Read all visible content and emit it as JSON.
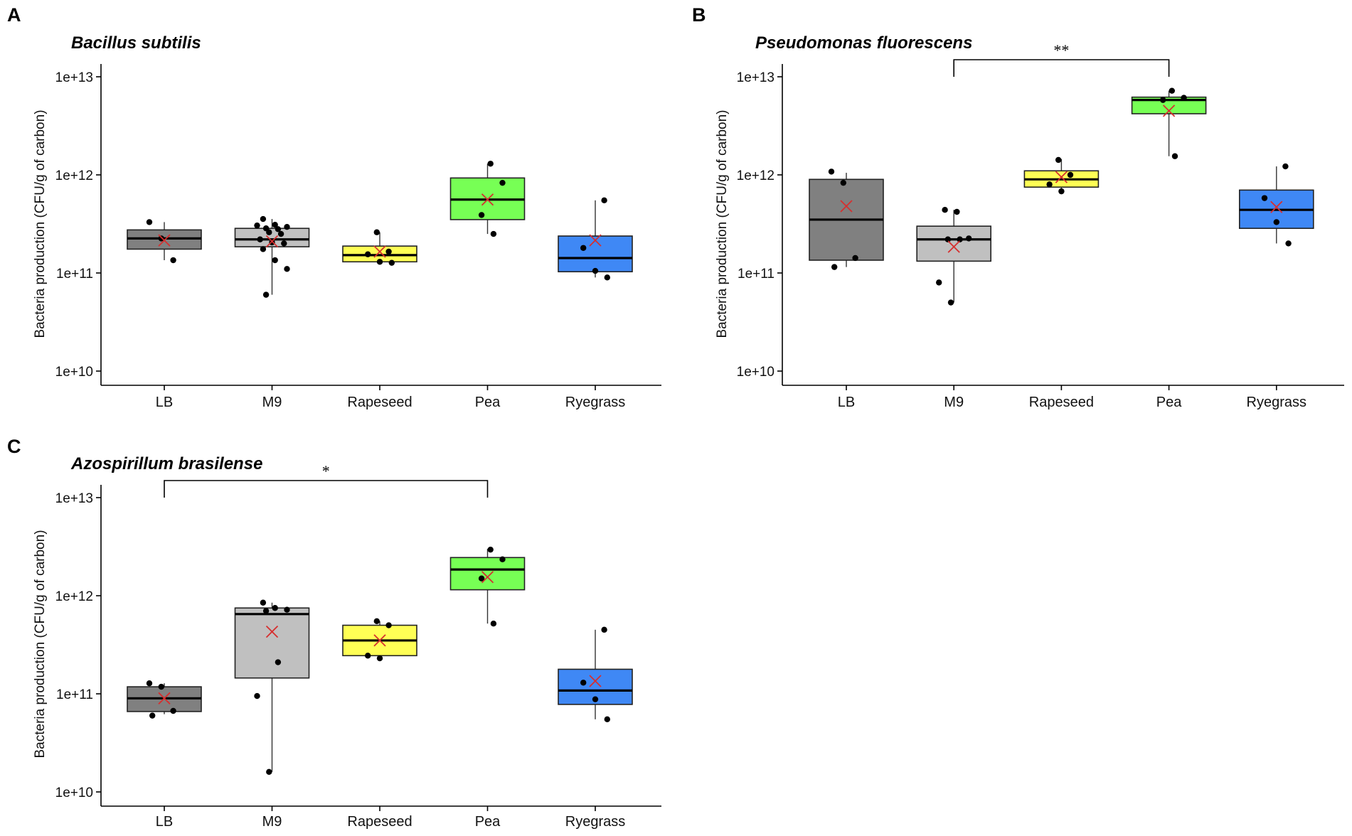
{
  "chart_data": [
    {
      "type": "box",
      "panel": "A",
      "title": "Bacillus subtilis",
      "ylabel": "Bacteria production (CFU/g of carbon)",
      "yscale": "log10",
      "ylim": [
        10000000000.0,
        10000000000000.0
      ],
      "yticks": [
        "1e+10",
        "1e+11",
        "1e+12",
        "1e+13"
      ],
      "categories": [
        "LB",
        "M9",
        "Rapeseed",
        "Pea",
        "Ryegrass"
      ],
      "boxes": [
        {
          "category": "LB",
          "color": "#808080",
          "q1": 175000000000.0,
          "median": 225000000000.0,
          "q3": 275000000000.0,
          "whisker_low": 135000000000.0,
          "whisker_high": 330000000000.0,
          "mean": 215000000000.0,
          "points": [
            330000000000.0,
            225000000000.0,
            135000000000.0
          ]
        },
        {
          "category": "M9",
          "color": "#c0c0c0",
          "q1": 185000000000.0,
          "median": 220000000000.0,
          "q3": 285000000000.0,
          "whisker_low": 60000000000.0,
          "whisker_high": 355000000000.0,
          "mean": 210000000000.0,
          "points": [
            355000000000.0,
            310000000000.0,
            295000000000.0,
            285000000000.0,
            280000000000.0,
            305000000000.0,
            260000000000.0,
            250000000000.0,
            220000000000.0,
            205000000000.0,
            200000000000.0,
            175000000000.0,
            135000000000.0,
            110000000000.0,
            60000000000.0
          ]
        },
        {
          "category": "Rapeseed",
          "color": "#ffff55",
          "q1": 130000000000.0,
          "median": 152000000000.0,
          "q3": 188000000000.0,
          "whisker_low": 127000000000.0,
          "whisker_high": 260000000000.0,
          "mean": 165000000000.0,
          "points": [
            260000000000.0,
            165000000000.0,
            155000000000.0,
            130000000000.0,
            127000000000.0
          ]
        },
        {
          "category": "Pea",
          "color": "#77ff55",
          "q1": 350000000000.0,
          "median": 560000000000.0,
          "q3": 930000000000.0,
          "whisker_low": 250000000000.0,
          "whisker_high": 1300000000000.0,
          "mean": 560000000000.0,
          "points": [
            1300000000000.0,
            830000000000.0,
            390000000000.0,
            250000000000.0
          ]
        },
        {
          "category": "Ryegrass",
          "color": "#3f88f5",
          "q1": 103000000000.0,
          "median": 142000000000.0,
          "q3": 238000000000.0,
          "whisker_low": 90000000000.0,
          "whisker_high": 550000000000.0,
          "mean": 215000000000.0,
          "points": [
            550000000000.0,
            180000000000.0,
            105000000000.0,
            90000000000.0
          ]
        }
      ],
      "significance": []
    },
    {
      "type": "box",
      "panel": "B",
      "title": "Pseudomonas fluorescens",
      "ylabel": "Bacteria production (CFU/g of carbon)",
      "yscale": "log10",
      "ylim": [
        10000000000.0,
        10000000000000.0
      ],
      "yticks": [
        "1e+10",
        "1e+11",
        "1e+12",
        "1e+13"
      ],
      "categories": [
        "LB",
        "M9",
        "Rapeseed",
        "Pea",
        "Ryegrass"
      ],
      "boxes": [
        {
          "category": "LB",
          "color": "#808080",
          "q1": 135000000000.0,
          "median": 350000000000.0,
          "q3": 900000000000.0,
          "whisker_low": 115000000000.0,
          "whisker_high": 1050000000000.0,
          "mean": 480000000000.0,
          "points": [
            1080000000000.0,
            830000000000.0,
            142000000000.0,
            115000000000.0
          ]
        },
        {
          "category": "M9",
          "color": "#c0c0c0",
          "q1": 132000000000.0,
          "median": 220000000000.0,
          "q3": 300000000000.0,
          "whisker_low": 50000000000.0,
          "whisker_high": 440000000000.0,
          "mean": 185000000000.0,
          "points": [
            440000000000.0,
            420000000000.0,
            225000000000.0,
            220000000000.0,
            220000000000.0,
            80000000000.0,
            50000000000.0
          ]
        },
        {
          "category": "Rapeseed",
          "color": "#ffff55",
          "q1": 750000000000.0,
          "median": 900000000000.0,
          "q3": 1100000000000.0,
          "whisker_low": 700000000000.0,
          "whisker_high": 1450000000000.0,
          "mean": 950000000000.0,
          "points": [
            1420000000000.0,
            1000000000000.0,
            800000000000.0,
            680000000000.0
          ]
        },
        {
          "category": "Pea",
          "color": "#77ff55",
          "q1": 4200000000000.0,
          "median": 5800000000000.0,
          "q3": 6200000000000.0,
          "whisker_low": 1550000000000.0,
          "whisker_high": 7200000000000.0,
          "mean": 4500000000000.0,
          "points": [
            7200000000000.0,
            6100000000000.0,
            5800000000000.0,
            1550000000000.0
          ]
        },
        {
          "category": "Ryegrass",
          "color": "#3f88f5",
          "q1": 285000000000.0,
          "median": 440000000000.0,
          "q3": 700000000000.0,
          "whisker_low": 200000000000.0,
          "whisker_high": 1220000000000.0,
          "mean": 470000000000.0,
          "points": [
            1220000000000.0,
            580000000000.0,
            330000000000.0,
            200000000000.0
          ]
        }
      ],
      "significance": [
        {
          "from": "M9",
          "to": "Pea",
          "label": "**"
        }
      ]
    },
    {
      "type": "box",
      "panel": "C",
      "title": "Azospirillum brasilense",
      "ylabel": "Bacteria production (CFU/g of carbon)",
      "yscale": "log10",
      "ylim": [
        10000000000.0,
        10000000000000.0
      ],
      "yticks": [
        "1e+10",
        "1e+11",
        "1e+12",
        "1e+13"
      ],
      "categories": [
        "LB",
        "M9",
        "Rapeseed",
        "Pea",
        "Ryegrass"
      ],
      "boxes": [
        {
          "category": "LB",
          "color": "#808080",
          "q1": 66000000000.0,
          "median": 90000000000.0,
          "q3": 118000000000.0,
          "whisker_low": 62000000000.0,
          "whisker_high": 128000000000.0,
          "mean": 90000000000.0,
          "points": [
            128000000000.0,
            118000000000.0,
            67000000000.0,
            60000000000.0
          ]
        },
        {
          "category": "M9",
          "color": "#c0c0c0",
          "q1": 145000000000.0,
          "median": 650000000000.0,
          "q3": 750000000000.0,
          "whisker_low": 16000000000.0,
          "whisker_high": 850000000000.0,
          "mean": 430000000000.0,
          "points": [
            850000000000.0,
            750000000000.0,
            720000000000.0,
            700000000000.0,
            210000000000.0,
            95000000000.0,
            16000000000.0
          ]
        },
        {
          "category": "Rapeseed",
          "color": "#ffff55",
          "q1": 245000000000.0,
          "median": 350000000000.0,
          "q3": 500000000000.0,
          "whisker_low": 230000000000.0,
          "whisker_high": 550000000000.0,
          "mean": 350000000000.0,
          "points": [
            550000000000.0,
            500000000000.0,
            245000000000.0,
            230000000000.0
          ]
        },
        {
          "category": "Pea",
          "color": "#77ff55",
          "q1": 1150000000000.0,
          "median": 1850000000000.0,
          "q3": 2450000000000.0,
          "whisker_low": 520000000000.0,
          "whisker_high": 3000000000000.0,
          "mean": 1550000000000.0,
          "points": [
            2950000000000.0,
            2350000000000.0,
            1500000000000.0,
            520000000000.0
          ]
        },
        {
          "category": "Ryegrass",
          "color": "#3f88f5",
          "q1": 78000000000.0,
          "median": 108000000000.0,
          "q3": 178000000000.0,
          "whisker_low": 55000000000.0,
          "whisker_high": 450000000000.0,
          "mean": 135000000000.0,
          "points": [
            450000000000.0,
            130000000000.0,
            88000000000.0,
            55000000000.0
          ]
        }
      ],
      "significance": [
        {
          "from": "LB",
          "to": "Pea",
          "label": "*"
        }
      ]
    }
  ]
}
